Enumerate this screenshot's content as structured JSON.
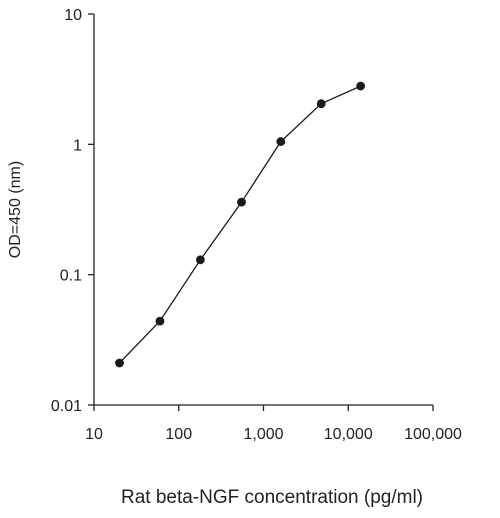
{
  "chart_data": {
    "type": "line",
    "title": "",
    "xlabel": "Rat beta-NGF concentration (pg/ml)",
    "ylabel": "OD=450 (nm)",
    "x_scale": "log",
    "y_scale": "log",
    "xlim": [
      10,
      100000
    ],
    "ylim": [
      0.01,
      10
    ],
    "x_ticks": [
      10,
      100,
      1000,
      10000,
      100000
    ],
    "x_tick_labels": [
      "10",
      "100",
      "1,000",
      "10,000",
      "100,000"
    ],
    "y_ticks": [
      0.01,
      0.1,
      1,
      10
    ],
    "y_tick_labels": [
      "0.01",
      "0.1",
      "1",
      "10"
    ],
    "grid": false,
    "legend": "none",
    "marker": "circle",
    "colors": {
      "line": "#1a1a1a",
      "marker": "#1a1a1a",
      "axis": "#222222"
    },
    "series": [
      {
        "x": [
          20,
          60,
          180,
          550,
          1600,
          4800,
          14000
        ],
        "y": [
          0.021,
          0.044,
          0.13,
          0.36,
          1.05,
          2.05,
          2.8
        ]
      }
    ]
  }
}
